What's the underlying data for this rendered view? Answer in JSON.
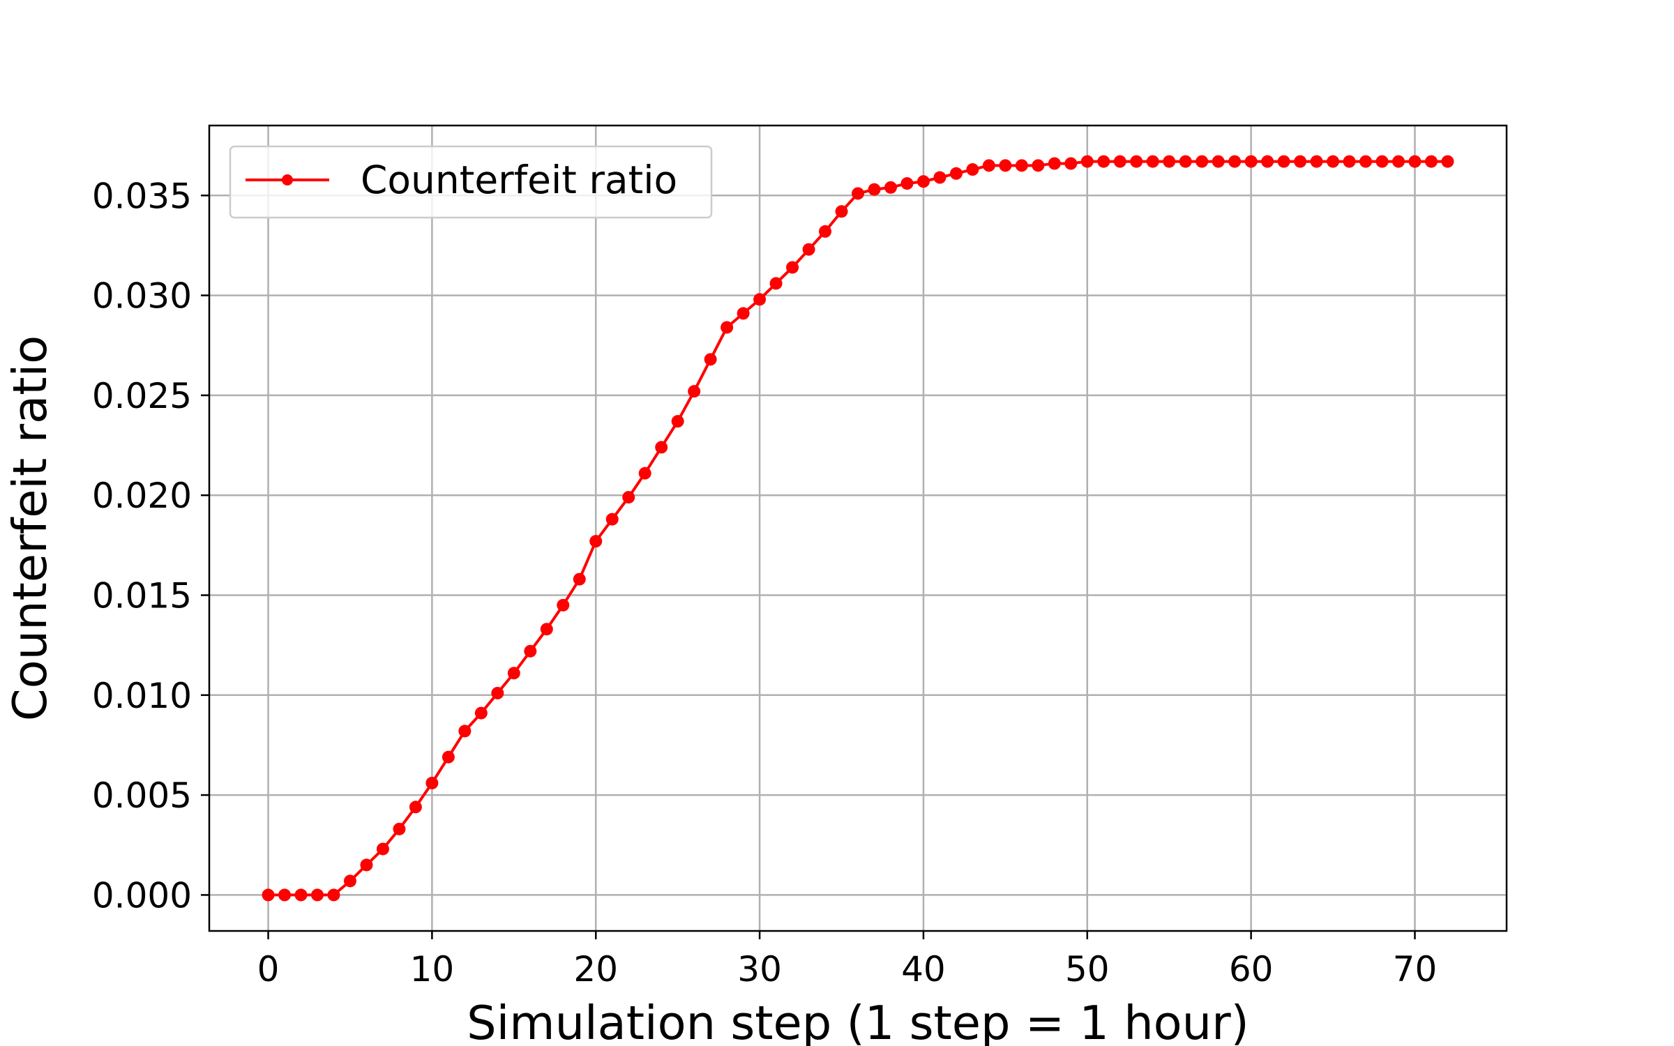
{
  "chart_data": {
    "type": "line",
    "xlabel": "Simulation step (1 step = 1 hour)",
    "ylabel": "Counterfeit ratio",
    "xlim": [
      -3.6,
      75.6
    ],
    "ylim": [
      -0.0018,
      0.0385
    ],
    "xticks": [
      0,
      10,
      20,
      30,
      40,
      50,
      60,
      70
    ],
    "yticks": [
      0.0,
      0.005,
      0.01,
      0.015,
      0.02,
      0.025,
      0.03,
      0.035
    ],
    "xtick_labels": [
      "0",
      "10",
      "20",
      "30",
      "40",
      "50",
      "60",
      "70"
    ],
    "ytick_labels": [
      "0.000",
      "0.005",
      "0.010",
      "0.015",
      "0.020",
      "0.025",
      "0.030",
      "0.035"
    ],
    "grid": true,
    "legend_position": "top-left",
    "series": [
      {
        "name": "Counterfeit ratio",
        "color": "#ff0000",
        "marker": "circle",
        "x": [
          0,
          1,
          2,
          3,
          4,
          5,
          6,
          7,
          8,
          9,
          10,
          11,
          12,
          13,
          14,
          15,
          16,
          17,
          18,
          19,
          20,
          21,
          22,
          23,
          24,
          25,
          26,
          27,
          28,
          29,
          30,
          31,
          32,
          33,
          34,
          35,
          36,
          37,
          38,
          39,
          40,
          41,
          42,
          43,
          44,
          45,
          46,
          47,
          48,
          49,
          50,
          51,
          52,
          53,
          54,
          55,
          56,
          57,
          58,
          59,
          60,
          61,
          62,
          63,
          64,
          65,
          66,
          67,
          68,
          69,
          70,
          71,
          72
        ],
        "values": [
          0.0,
          0.0,
          0.0,
          0.0,
          0.0,
          0.0007,
          0.0015,
          0.0023,
          0.0033,
          0.0044,
          0.0056,
          0.0069,
          0.0082,
          0.0091,
          0.0101,
          0.0111,
          0.0122,
          0.0133,
          0.0145,
          0.0158,
          0.0177,
          0.0188,
          0.0199,
          0.0211,
          0.0224,
          0.0237,
          0.0252,
          0.0268,
          0.0284,
          0.0291,
          0.0298,
          0.0306,
          0.0314,
          0.0323,
          0.0332,
          0.0342,
          0.0351,
          0.0353,
          0.0354,
          0.0356,
          0.0357,
          0.0359,
          0.0361,
          0.0363,
          0.0365,
          0.0365,
          0.0365,
          0.0365,
          0.0366,
          0.0366,
          0.0367,
          0.0367,
          0.0367,
          0.0367,
          0.0367,
          0.0367,
          0.0367,
          0.0367,
          0.0367,
          0.0367,
          0.0367,
          0.0367,
          0.0367,
          0.0367,
          0.0367,
          0.0367,
          0.0367,
          0.0367,
          0.0367,
          0.0367,
          0.0367,
          0.0367,
          0.0367
        ]
      }
    ]
  }
}
